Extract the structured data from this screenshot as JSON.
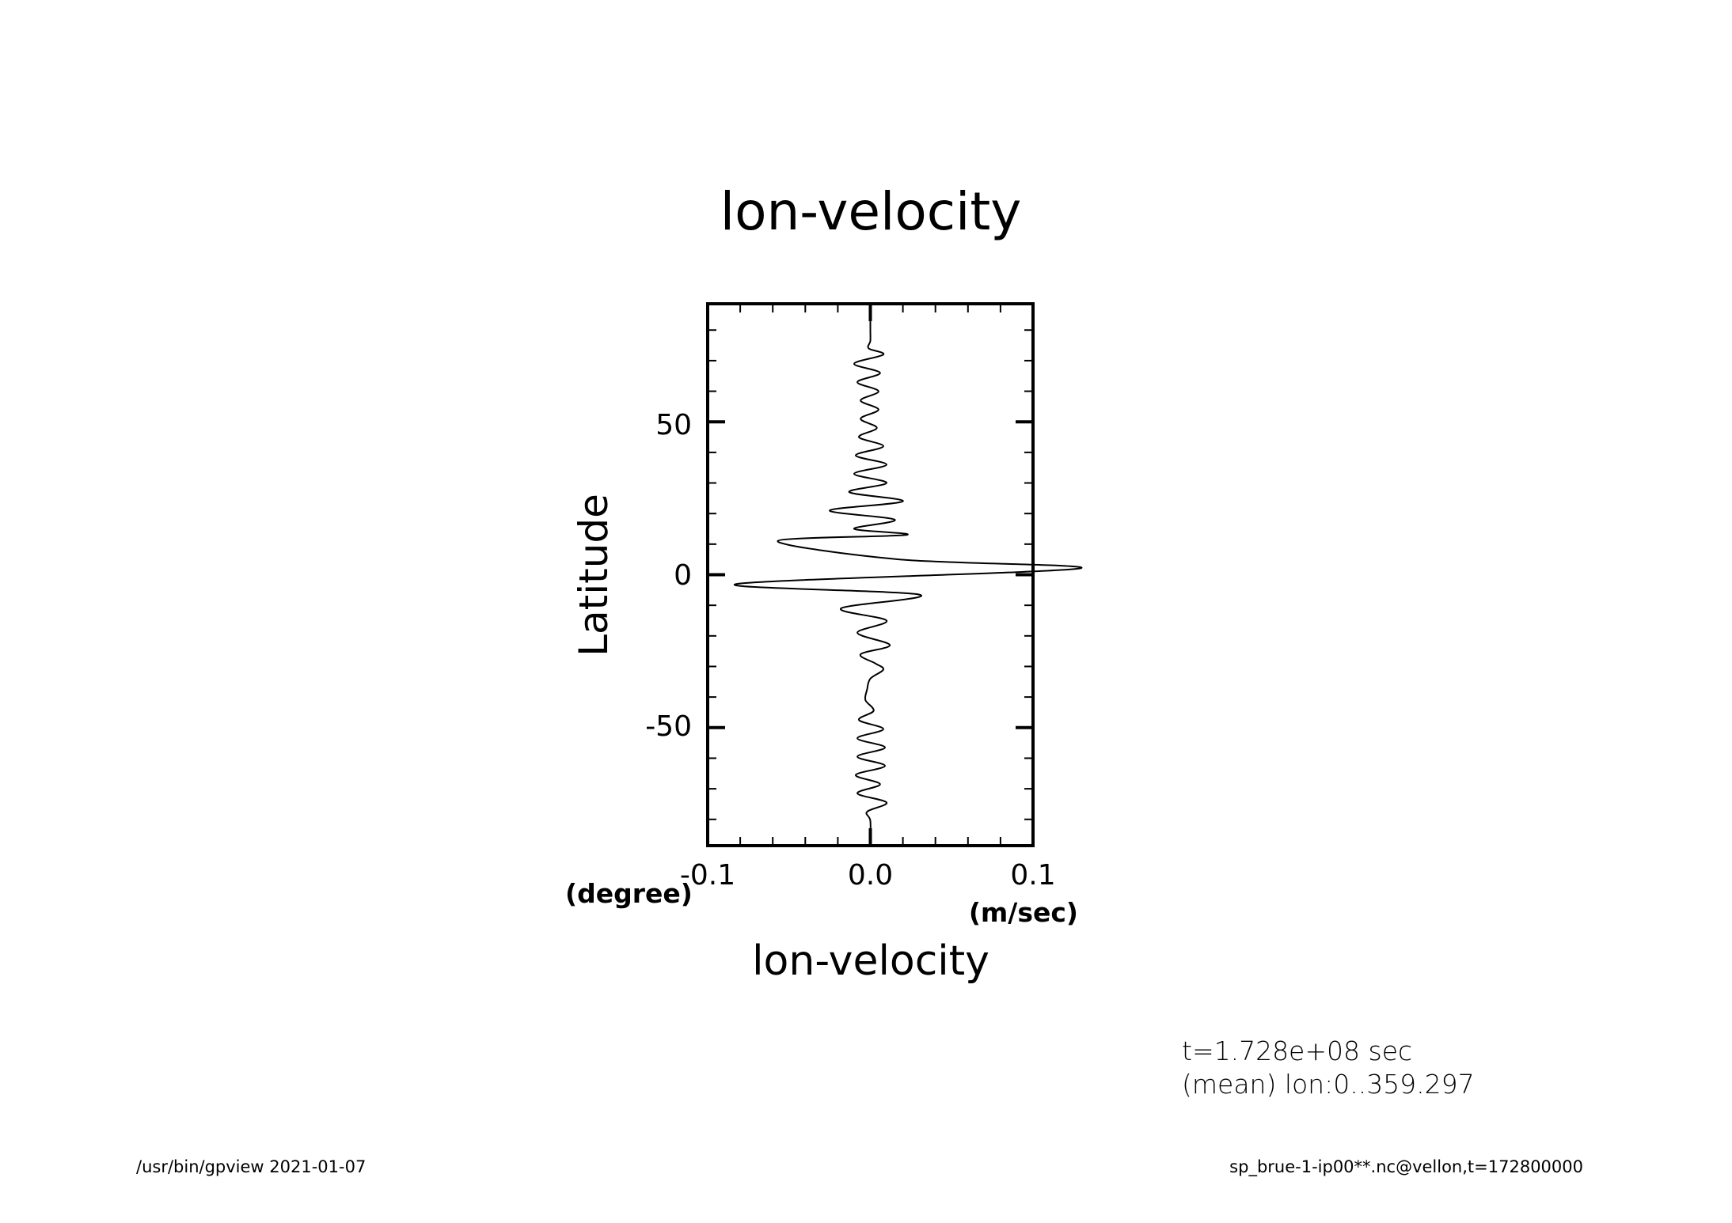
{
  "chart_data": {
    "type": "line",
    "title": "lon-velocity",
    "xlabel": "lon-velocity",
    "ylabel": "Latitude",
    "x_units": "(m/sec)",
    "y_units": "(degree)",
    "xlim": [
      -0.1,
      0.1
    ],
    "ylim": [
      -88.6,
      88.6
    ],
    "x_ticks": [
      -0.1,
      0.0,
      0.1
    ],
    "x_tick_labels": [
      "-0.1",
      "0.0",
      "0.1"
    ],
    "y_ticks": [
      -50,
      0,
      50
    ],
    "y_tick_labels": [
      "-50",
      "0",
      "50"
    ],
    "grid": false,
    "legend": "none",
    "series": [
      {
        "x": [
          0.0,
          0.0,
          0.0,
          -0.001,
          0.008,
          -0.01,
          0.006,
          -0.008,
          0.005,
          -0.006,
          0.005,
          -0.006,
          0.004,
          -0.007,
          0.008,
          -0.009,
          0.01,
          -0.01,
          0.01,
          -0.013,
          0.02,
          -0.025,
          0.015,
          -0.01,
          0.022,
          -0.057,
          0.018,
          0.128,
          -0.082,
          0.03,
          -0.018,
          0.01,
          -0.008,
          0.012,
          -0.006,
          0.003,
          0.008,
          0.0,
          -0.002,
          -0.003,
          0.002,
          -0.007,
          0.008,
          -0.008,
          0.009,
          -0.008,
          0.009,
          -0.009,
          0.006,
          -0.008,
          0.01,
          -0.002,
          0.0,
          0.0
        ],
        "y": [
          84.0,
          80.0,
          76.5,
          74.0,
          72.0,
          69.0,
          66.0,
          63.0,
          60.0,
          57.0,
          54.0,
          51.0,
          48.0,
          45.0,
          42.0,
          39.0,
          36.0,
          33.0,
          30.0,
          27.0,
          24.0,
          21.0,
          18.0,
          15.0,
          13.0,
          11.0,
          5.0,
          2.0,
          -3.0,
          -6.5,
          -11.0,
          -15.0,
          -19.0,
          -23.0,
          -26.0,
          -29.0,
          -31.0,
          -34.0,
          -37.5,
          -41.0,
          -44.5,
          -47.5,
          -50.5,
          -53.5,
          -56.5,
          -59.5,
          -62.5,
          -65.5,
          -68.5,
          -71.5,
          -74.5,
          -77.5,
          -80.5,
          -88.6
        ]
      }
    ]
  },
  "info": {
    "time_line": "t=1.728e+08 sec",
    "mean_line": "(mean) lon:0..359.297"
  },
  "footer": {
    "left": "/usr/bin/gpview   2021-01-07",
    "right": "sp_brue-1-ip00**.nc@vellon,t=172800000"
  }
}
